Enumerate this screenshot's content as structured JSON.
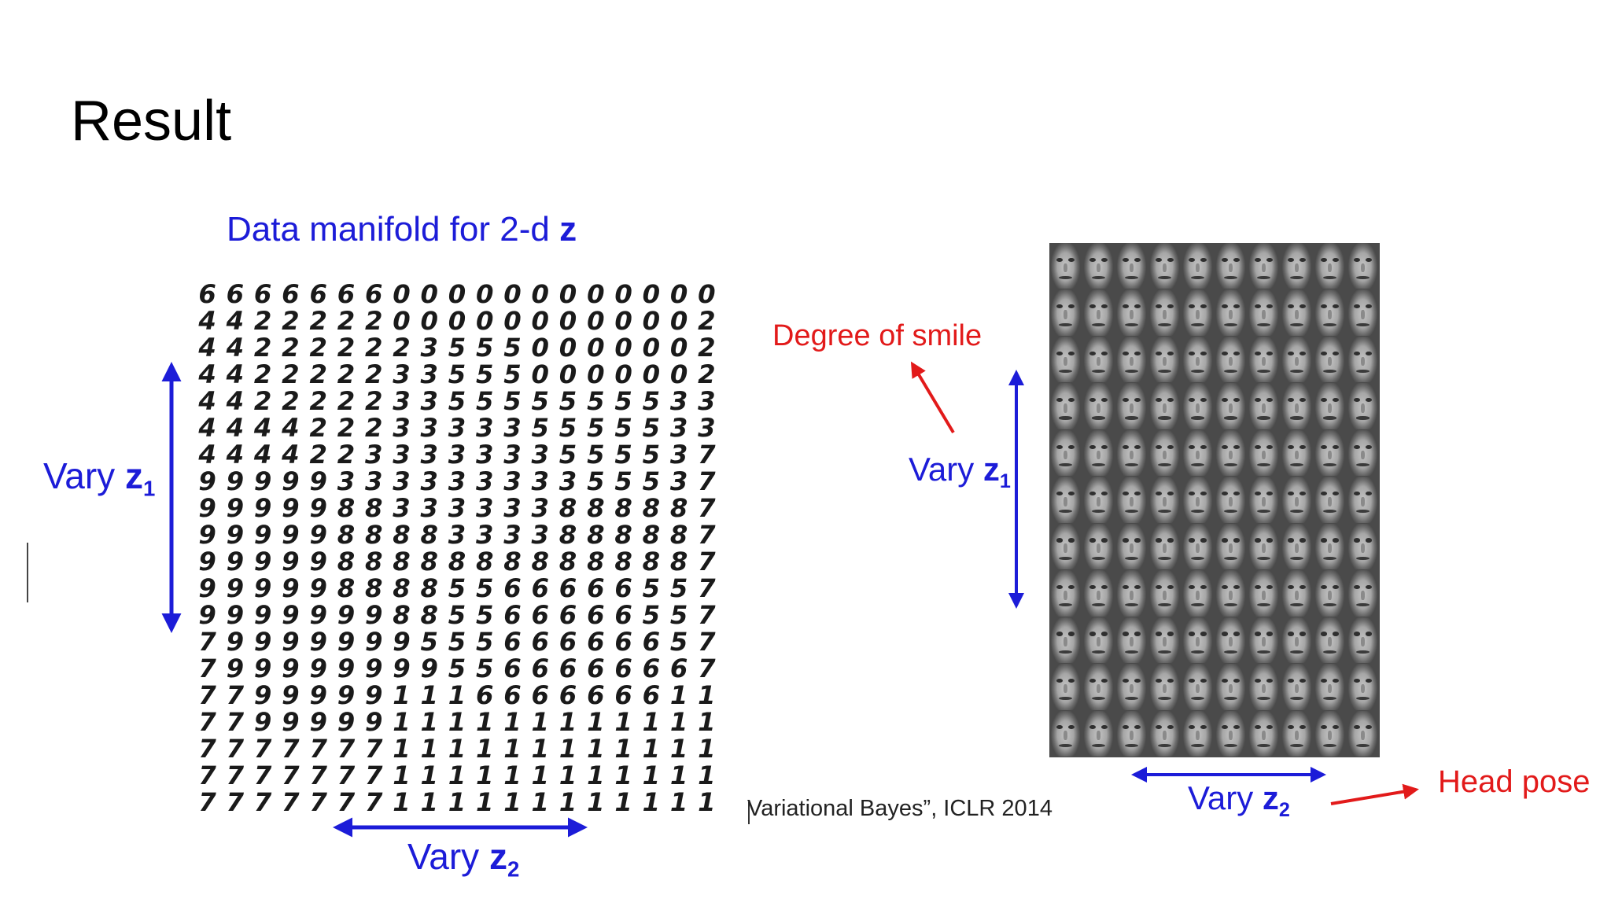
{
  "slide": {
    "title": "Result"
  },
  "left_figure": {
    "title_prefix": "Data manifold for 2-d ",
    "title_var": "z",
    "mnist_rows": [
      "6666666000000000000",
      "4422222000000000002",
      "4422222235550000002",
      "4422222335550000002",
      "4422222335555555533",
      "4444222333335555533",
      "4444223333333555537",
      "9999933333333355537",
      "9999988333333888887",
      "9999988883333888887",
      "9999988888888888887",
      "9999988885566666557",
      "9999999885566666557",
      "7999999955566666657",
      "7999999995566666667",
      "7799999111666666611",
      "7799999111111111111",
      "7777777111111111111",
      "7777777111111111111",
      "7777777111111111111"
    ],
    "label_z1_text": "Vary ",
    "label_z1_var": "z",
    "label_z1_sub": "1",
    "label_z2_text": "Vary ",
    "label_z2_var": "z",
    "label_z2_sub": "2"
  },
  "citation": "Variational Bayes”, ICLR 2014",
  "right_figure": {
    "face_rows": 11,
    "face_cols": 10,
    "label_smile": "Degree of smile",
    "label_pose": "Head pose",
    "label_z1_text": "Vary ",
    "label_z1_var": "z",
    "label_z1_sub": "1",
    "label_z2_text": "Vary ",
    "label_z2_var": "z",
    "label_z2_sub": "2"
  },
  "colors": {
    "blue_label": "#1c1cd8",
    "red_label": "#e21a1a"
  }
}
